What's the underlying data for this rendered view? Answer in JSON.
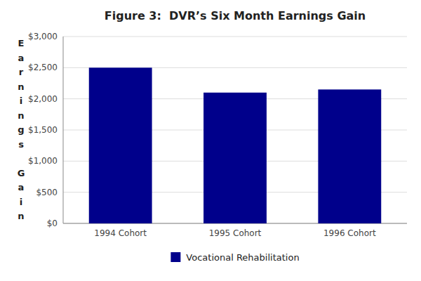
{
  "chart_data": {
    "type": "bar",
    "title": "Figure 3:  DVR’s Six Month Earnings Gain",
    "y_label": "Earnings Gain",
    "categories": [
      "1994 Cohort",
      "1995 Cohort",
      "1996 Cohort"
    ],
    "series": [
      {
        "name": "Vocational Rehabilitation",
        "color": "#00008B",
        "values": [
          2500,
          2100,
          2150
        ]
      }
    ],
    "ylim": [
      0,
      3000
    ],
    "yticks": [
      {
        "value": 0,
        "label": "$0"
      },
      {
        "value": 500,
        "label": "$500"
      },
      {
        "value": 1000,
        "label": "$1,000"
      },
      {
        "value": 1500,
        "label": "$1,500"
      },
      {
        "value": 2000,
        "label": "$2,000"
      },
      {
        "value": 2500,
        "label": "$2,500"
      },
      {
        "value": 3000,
        "label": "$3,000"
      }
    ],
    "grid": true,
    "legend": "bottom"
  }
}
